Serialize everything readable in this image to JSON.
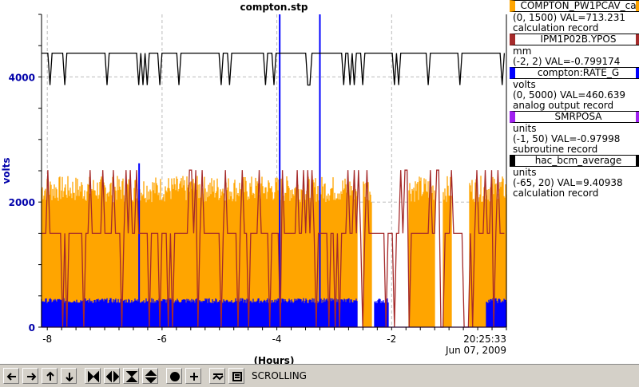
{
  "title": "compton.stp",
  "yaxis_label": "volts",
  "xaxis_label": "(Hours)",
  "timestamp": {
    "time": "20:25:33",
    "date": "Jun 07, 2009"
  },
  "legend": [
    {
      "name": "COMPTON_PW1PCAV_ca",
      "color": "#ffa500",
      "lines": [
        "(0, 1500) VAL=713.231",
        "calculation record"
      ]
    },
    {
      "name": "IPM1P02B.YPOS",
      "color": "#a52a2a",
      "lines": [
        "mm",
        "(-2, 2) VAL=-0.799174"
      ]
    },
    {
      "name": "compton:RATE_G",
      "color": "#0000ff",
      "lines": [
        "volts",
        "(0, 5000) VAL=460.639",
        "analog output record"
      ]
    },
    {
      "name": "SMRPOSA",
      "color": "#a020f0",
      "lines": [
        "units",
        "(-1, 50) VAL=-0.97998",
        "subroutine record"
      ]
    },
    {
      "name": "hac_bcm_average",
      "color": "#000000",
      "lines": [
        "units",
        "(-65, 20) VAL=9.40938",
        "calculation record"
      ]
    }
  ],
  "toolbar": {
    "status": "SCROLLING",
    "buttons": [
      "arrow-left-icon",
      "arrow-right-icon",
      "arrow-up-icon",
      "arrow-down-icon",
      "zoom-in-x-icon",
      "zoom-out-x-icon",
      "zoom-in-y-icon",
      "zoom-out-y-icon",
      "autoscale-icon",
      "add-icon",
      "scroll-mode-icon",
      "config-icon"
    ]
  },
  "chart_data": {
    "type": "line",
    "title": "compton.stp",
    "xlabel": "(Hours)",
    "ylabel": "volts",
    "xlim": [
      -8.1,
      0
    ],
    "ylim": [
      0,
      5000
    ],
    "x_ticks": [
      -8,
      -6,
      -4,
      -2
    ],
    "x_tick_labels": [
      "-8",
      "-6",
      "-4",
      "-2"
    ],
    "y_ticks": [
      0,
      2000,
      4000
    ],
    "y_tick_labels": [
      "0",
      "2000",
      "4000"
    ],
    "grid": true,
    "series": [
      {
        "name": "COMPTON_PW1PCAV_ca",
        "color": "#ffa500",
        "style": "dense",
        "base": 0,
        "top": 2350,
        "gaps": [
          [
            -2.6,
            -2.5
          ],
          [
            -2.35,
            -1.7
          ],
          [
            -1.25,
            -1.1
          ],
          [
            -0.95,
            -0.65
          ]
        ]
      },
      {
        "name": "compton:RATE_G",
        "color": "#0000ff",
        "style": "dense",
        "base": 0,
        "top": 450,
        "gaps": [
          [
            -2.6,
            -2.3
          ],
          [
            -2.05,
            -0.35
          ]
        ],
        "spikes": [
          [
            -6.4,
            2620
          ],
          [
            -3.95,
            5000
          ],
          [
            -3.25,
            5000
          ]
        ]
      },
      {
        "name": "IPM1P02B.YPOS",
        "color": "#a52a2a",
        "style": "level",
        "value": 1500,
        "high": 2510,
        "low": 0
      },
      {
        "name": "hac_bcm_average",
        "color": "#000000",
        "style": "level",
        "value": 4380,
        "low": 3870
      },
      {
        "name": "SMRPOSA",
        "color": "#a020f0",
        "style": "level",
        "value": 0
      }
    ]
  }
}
